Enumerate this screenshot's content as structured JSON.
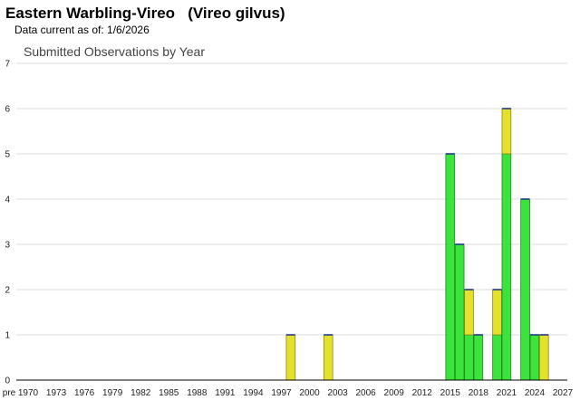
{
  "header": {
    "species": "Eastern Warbling-Vireo   (Vireo gilvus)",
    "data_current": "Data current as of: 1/6/2026"
  },
  "colors": {
    "green_fill": "#3de33d",
    "green_edge": "#1a8a1a",
    "yellow_fill": "#e5e02c",
    "yellow_edge": "#8a8a10",
    "cap": "#1f3a8a",
    "grid": "#dddddd"
  },
  "chart_data": {
    "type": "bar",
    "stacked": true,
    "title": "Submitted Observations by Year",
    "xlabel": "",
    "ylabel": "",
    "ylim": [
      0,
      7
    ],
    "yticks": [
      "0",
      "1",
      "2",
      "3",
      "4",
      "5",
      "6",
      "7"
    ],
    "xticks": [
      "pre",
      "1970",
      "1973",
      "1976",
      "1979",
      "1982",
      "1985",
      "1988",
      "1991",
      "1994",
      "1997",
      "2000",
      "2003",
      "2006",
      "2009",
      "2012",
      "2015",
      "2018",
      "2021",
      "2024",
      "2027"
    ],
    "grid": true,
    "bars": [
      {
        "year": 1998,
        "green": 0,
        "yellow": 1
      },
      {
        "year": 2002,
        "green": 0,
        "yellow": 1
      },
      {
        "year": 2015,
        "green": 5,
        "yellow": 0
      },
      {
        "year": 2016,
        "green": 3,
        "yellow": 0
      },
      {
        "year": 2017,
        "green": 1,
        "yellow": 1
      },
      {
        "year": 2018,
        "green": 1,
        "yellow": 0
      },
      {
        "year": 2020,
        "green": 1,
        "yellow": 1
      },
      {
        "year": 2021,
        "green": 5,
        "yellow": 1
      },
      {
        "year": 2023,
        "green": 4,
        "yellow": 0
      },
      {
        "year": 2024,
        "green": 1,
        "yellow": 0
      },
      {
        "year": 2025,
        "green": 0,
        "yellow": 1
      }
    ]
  }
}
